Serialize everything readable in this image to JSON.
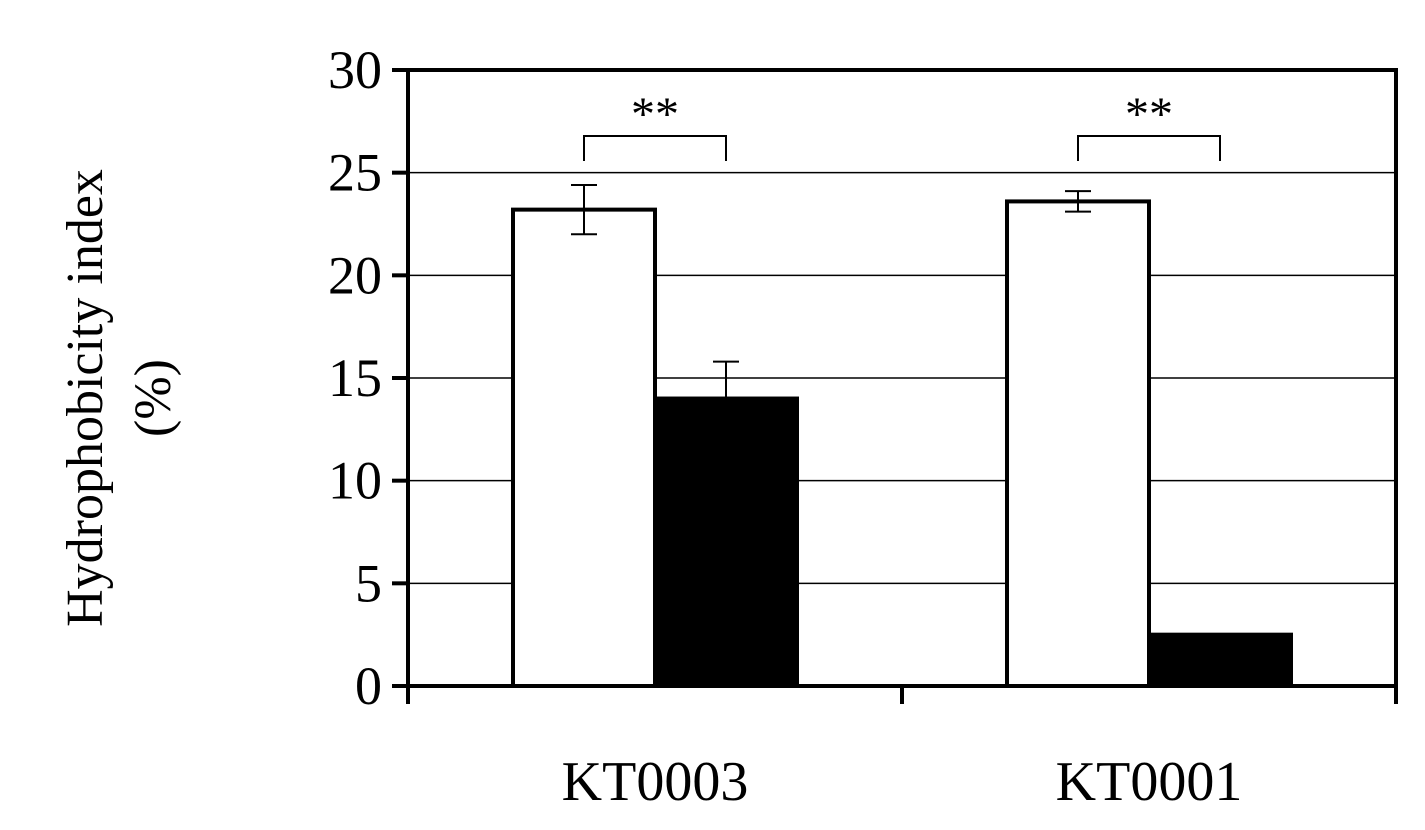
{
  "chart_data": {
    "type": "bar",
    "title": "",
    "ylabel_lines": [
      "Hydrophobicity index",
      "(%)"
    ],
    "xlabel": "",
    "categories": [
      "KT0003",
      "KT0001"
    ],
    "ylim": [
      0,
      30
    ],
    "yticks": [
      0,
      5,
      10,
      15,
      20,
      25,
      30
    ],
    "grid": true,
    "legend": "none",
    "series": [
      {
        "color": "#ffffff",
        "values": [
          23.2,
          23.6
        ],
        "errors": [
          1.2,
          0.5
        ]
      },
      {
        "color": "#000000",
        "values": [
          14.0,
          2.5
        ],
        "errors": [
          1.8,
          null
        ]
      }
    ],
    "significance": [
      {
        "category_index": 0,
        "label": "**"
      },
      {
        "category_index": 1,
        "label": "**"
      }
    ]
  }
}
